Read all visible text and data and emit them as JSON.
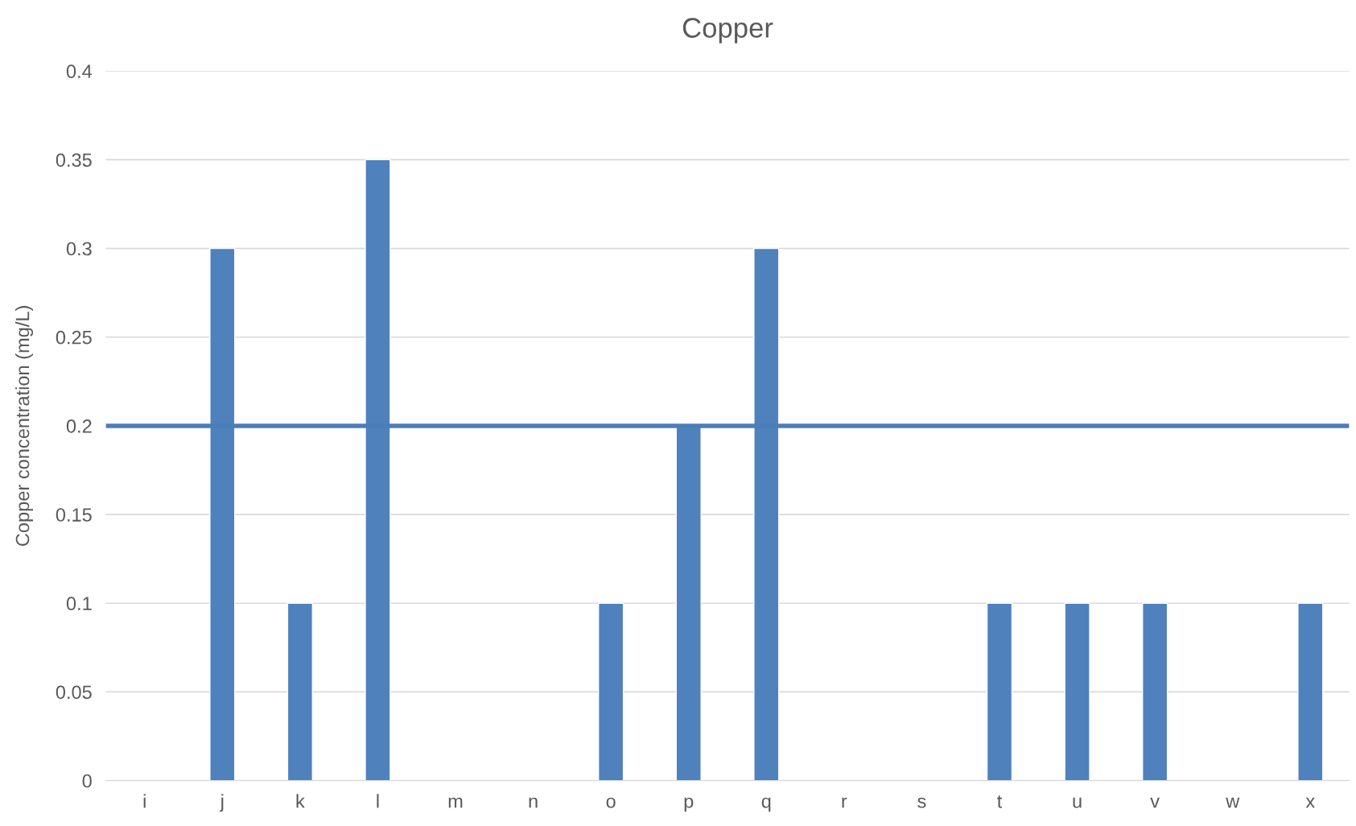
{
  "chart_data": {
    "type": "bar",
    "title": "Copper",
    "ylabel": "Copper concentration (mg/L)",
    "categories": [
      "i",
      "j",
      "k",
      "l",
      "m",
      "n",
      "o",
      "p",
      "q",
      "r",
      "s",
      "t",
      "u",
      "v",
      "w",
      "x"
    ],
    "values": [
      null,
      0.3,
      0.1,
      0.35,
      null,
      null,
      0.1,
      0.2,
      0.3,
      null,
      null,
      0.1,
      0.1,
      0.1,
      null,
      0.1
    ],
    "color": "#4f81bd",
    "ylim": [
      0,
      0.4
    ],
    "yticks": [
      0,
      0.05,
      0.1,
      0.15,
      0.2,
      0.25,
      0.3,
      0.35,
      0.4
    ],
    "grid": "y",
    "legend": false,
    "ref_lines": [
      {
        "axis": "y",
        "value": 0.2,
        "color": "#4a7ebb",
        "line_style": "solid"
      }
    ]
  }
}
